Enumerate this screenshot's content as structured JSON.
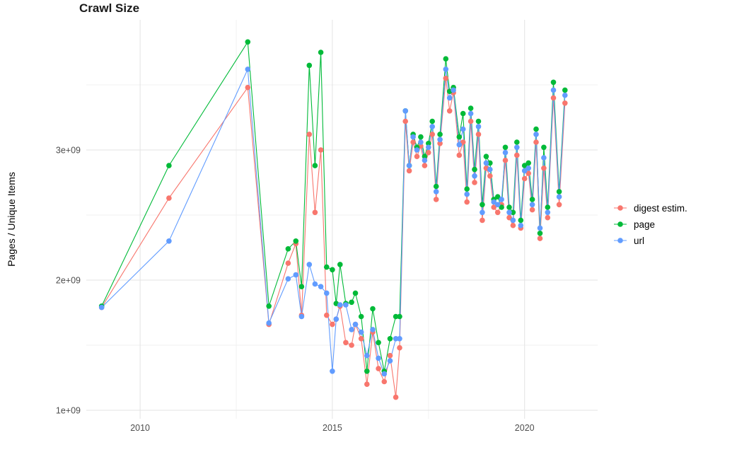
{
  "chart_data": {
    "type": "line",
    "title": "Crawl Size",
    "xlabel": "",
    "ylabel": "Pages / Unique Items",
    "legend_position": "right",
    "grid": true,
    "panel_background": "#ffffff",
    "grid_major_color": "#e3e3e3",
    "grid_minor_color": "#f0f0f0",
    "axis_text_color": "#4d4d4d",
    "y_unit": 1000000000,
    "xlim": [
      2008.6,
      2021.9
    ],
    "ylim": [
      1.0,
      4.0
    ],
    "x_ticks": {
      "values": [
        2010,
        2015,
        2020
      ],
      "labels": [
        "2010",
        "2015",
        "2020"
      ]
    },
    "y_ticks": {
      "values": [
        1,
        2,
        3
      ],
      "labels": [
        "1e+09",
        "2e+09",
        "3e+09"
      ]
    },
    "x_minor": [
      2012.5,
      2017.5
    ],
    "y_minor": [
      1.5,
      2.5,
      3.5
    ],
    "x": [
      2009.0,
      2010.75,
      2012.8,
      2013.35,
      2013.85,
      2014.05,
      2014.2,
      2014.4,
      2014.55,
      2014.7,
      2014.85,
      2015.0,
      2015.1,
      2015.2,
      2015.35,
      2015.5,
      2015.6,
      2015.75,
      2015.9,
      2016.05,
      2016.2,
      2016.35,
      2016.5,
      2016.65,
      2016.75,
      2016.9,
      2017.0,
      2017.1,
      2017.2,
      2017.3,
      2017.4,
      2017.5,
      2017.6,
      2017.7,
      2017.8,
      2017.95,
      2018.05,
      2018.15,
      2018.3,
      2018.4,
      2018.5,
      2018.6,
      2018.7,
      2018.8,
      2018.9,
      2019.0,
      2019.1,
      2019.2,
      2019.3,
      2019.4,
      2019.5,
      2019.6,
      2019.7,
      2019.8,
      2019.9,
      2020.0,
      2020.1,
      2020.2,
      2020.3,
      2020.4,
      2020.5,
      2020.6,
      2020.75,
      2020.9,
      2021.05
    ],
    "series": [
      {
        "name": "digest estim.",
        "color": "#F8766D",
        "values": [
          1.79,
          2.63,
          3.48,
          1.66,
          2.13,
          2.28,
          1.73,
          3.12,
          2.52,
          3.0,
          1.73,
          1.66,
          1.7,
          1.8,
          1.52,
          1.5,
          1.66,
          1.55,
          1.2,
          1.6,
          1.32,
          1.22,
          1.42,
          1.1,
          1.48,
          3.22,
          2.84,
          3.06,
          2.95,
          3.03,
          2.88,
          2.98,
          3.12,
          2.62,
          3.05,
          3.55,
          3.3,
          3.44,
          2.96,
          3.06,
          2.6,
          3.22,
          2.75,
          3.12,
          2.46,
          2.86,
          2.8,
          2.56,
          2.52,
          2.58,
          2.92,
          2.48,
          2.42,
          2.96,
          2.4,
          2.78,
          2.82,
          2.54,
          3.06,
          2.32,
          2.86,
          2.48,
          3.4,
          2.58,
          3.36
        ]
      },
      {
        "name": "page",
        "color": "#00BA38",
        "values": [
          1.8,
          2.88,
          3.83,
          1.8,
          2.24,
          2.3,
          1.95,
          3.65,
          2.88,
          3.75,
          2.1,
          2.08,
          1.82,
          2.12,
          1.82,
          1.83,
          1.9,
          1.72,
          1.3,
          1.78,
          1.52,
          1.3,
          1.55,
          1.72,
          1.72,
          3.3,
          2.88,
          3.12,
          3.02,
          3.1,
          2.95,
          3.05,
          3.22,
          2.72,
          3.12,
          3.7,
          3.45,
          3.48,
          3.1,
          3.28,
          2.7,
          3.32,
          2.85,
          3.22,
          2.58,
          2.95,
          2.9,
          2.62,
          2.64,
          2.56,
          3.02,
          2.56,
          2.52,
          3.06,
          2.46,
          2.88,
          2.9,
          2.62,
          3.16,
          2.36,
          3.02,
          2.56,
          3.52,
          2.68,
          3.46
        ]
      },
      {
        "name": "url",
        "color": "#619CFF",
        "values": [
          1.79,
          2.3,
          3.62,
          1.67,
          2.01,
          2.04,
          1.72,
          2.12,
          1.97,
          1.95,
          1.9,
          1.3,
          1.7,
          1.81,
          1.81,
          1.62,
          1.66,
          1.6,
          1.42,
          1.62,
          1.4,
          1.28,
          1.38,
          1.55,
          1.55,
          3.3,
          2.88,
          3.1,
          3.0,
          3.06,
          2.92,
          3.02,
          3.18,
          2.68,
          3.08,
          3.62,
          3.4,
          3.46,
          3.04,
          3.16,
          2.66,
          3.28,
          2.8,
          3.18,
          2.52,
          2.9,
          2.85,
          2.6,
          2.58,
          2.62,
          2.98,
          2.52,
          2.46,
          3.02,
          2.42,
          2.84,
          2.86,
          2.58,
          3.12,
          2.4,
          2.94,
          2.52,
          3.46,
          2.64,
          3.42
        ]
      }
    ]
  }
}
